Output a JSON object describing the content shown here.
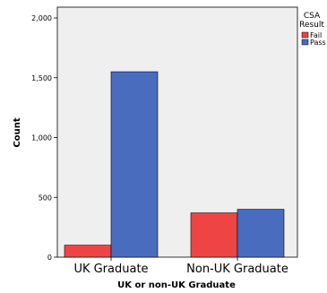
{
  "chart_data": {
    "type": "bar",
    "categories": [
      "UK Graduate",
      "Non-UK Graduate"
    ],
    "series": [
      {
        "name": "Fail",
        "color": "#ef4444",
        "values": [
          100,
          370
        ]
      },
      {
        "name": "Pass",
        "color": "#4a6cbf",
        "values": [
          1550,
          400
        ]
      }
    ],
    "xlabel": "UK or non-UK Graduate",
    "ylabel": "Count",
    "ylim": [
      0,
      2000
    ],
    "yticks": [
      0,
      500,
      1000,
      1500,
      2000
    ],
    "ytick_labels": [
      "0",
      "500",
      "1,000",
      "1,500",
      "2,000"
    ],
    "legend": {
      "title_lines": [
        "CSA",
        "Result"
      ],
      "placement": "top-right"
    },
    "plot_background": "#efefef",
    "grid": false
  }
}
